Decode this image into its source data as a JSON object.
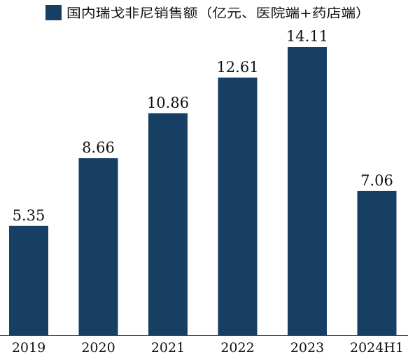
{
  "chart_data": {
    "type": "bar",
    "title": "",
    "xlabel": "",
    "ylabel": "",
    "legend": {
      "position": "top-left",
      "entries": [
        "国内瑞戈非尼销售额（亿元、医院端+药店端）"
      ]
    },
    "categories": [
      "2019",
      "2020",
      "2021",
      "2022",
      "2023",
      "2024H1"
    ],
    "series": [
      {
        "name": "国内瑞戈非尼销售额（亿元、医院端+药店端）",
        "values": [
          5.35,
          8.66,
          10.86,
          12.61,
          14.11,
          7.06
        ],
        "labels": [
          "5.35",
          "8.66",
          "10.86",
          "12.61",
          "14.11",
          "7.06"
        ]
      }
    ],
    "ylim": [
      0,
      14.11
    ],
    "grid": false,
    "data_labels": true,
    "colors": {
      "bar": "#173f63",
      "text": "#111111",
      "axis": "#444444"
    }
  }
}
